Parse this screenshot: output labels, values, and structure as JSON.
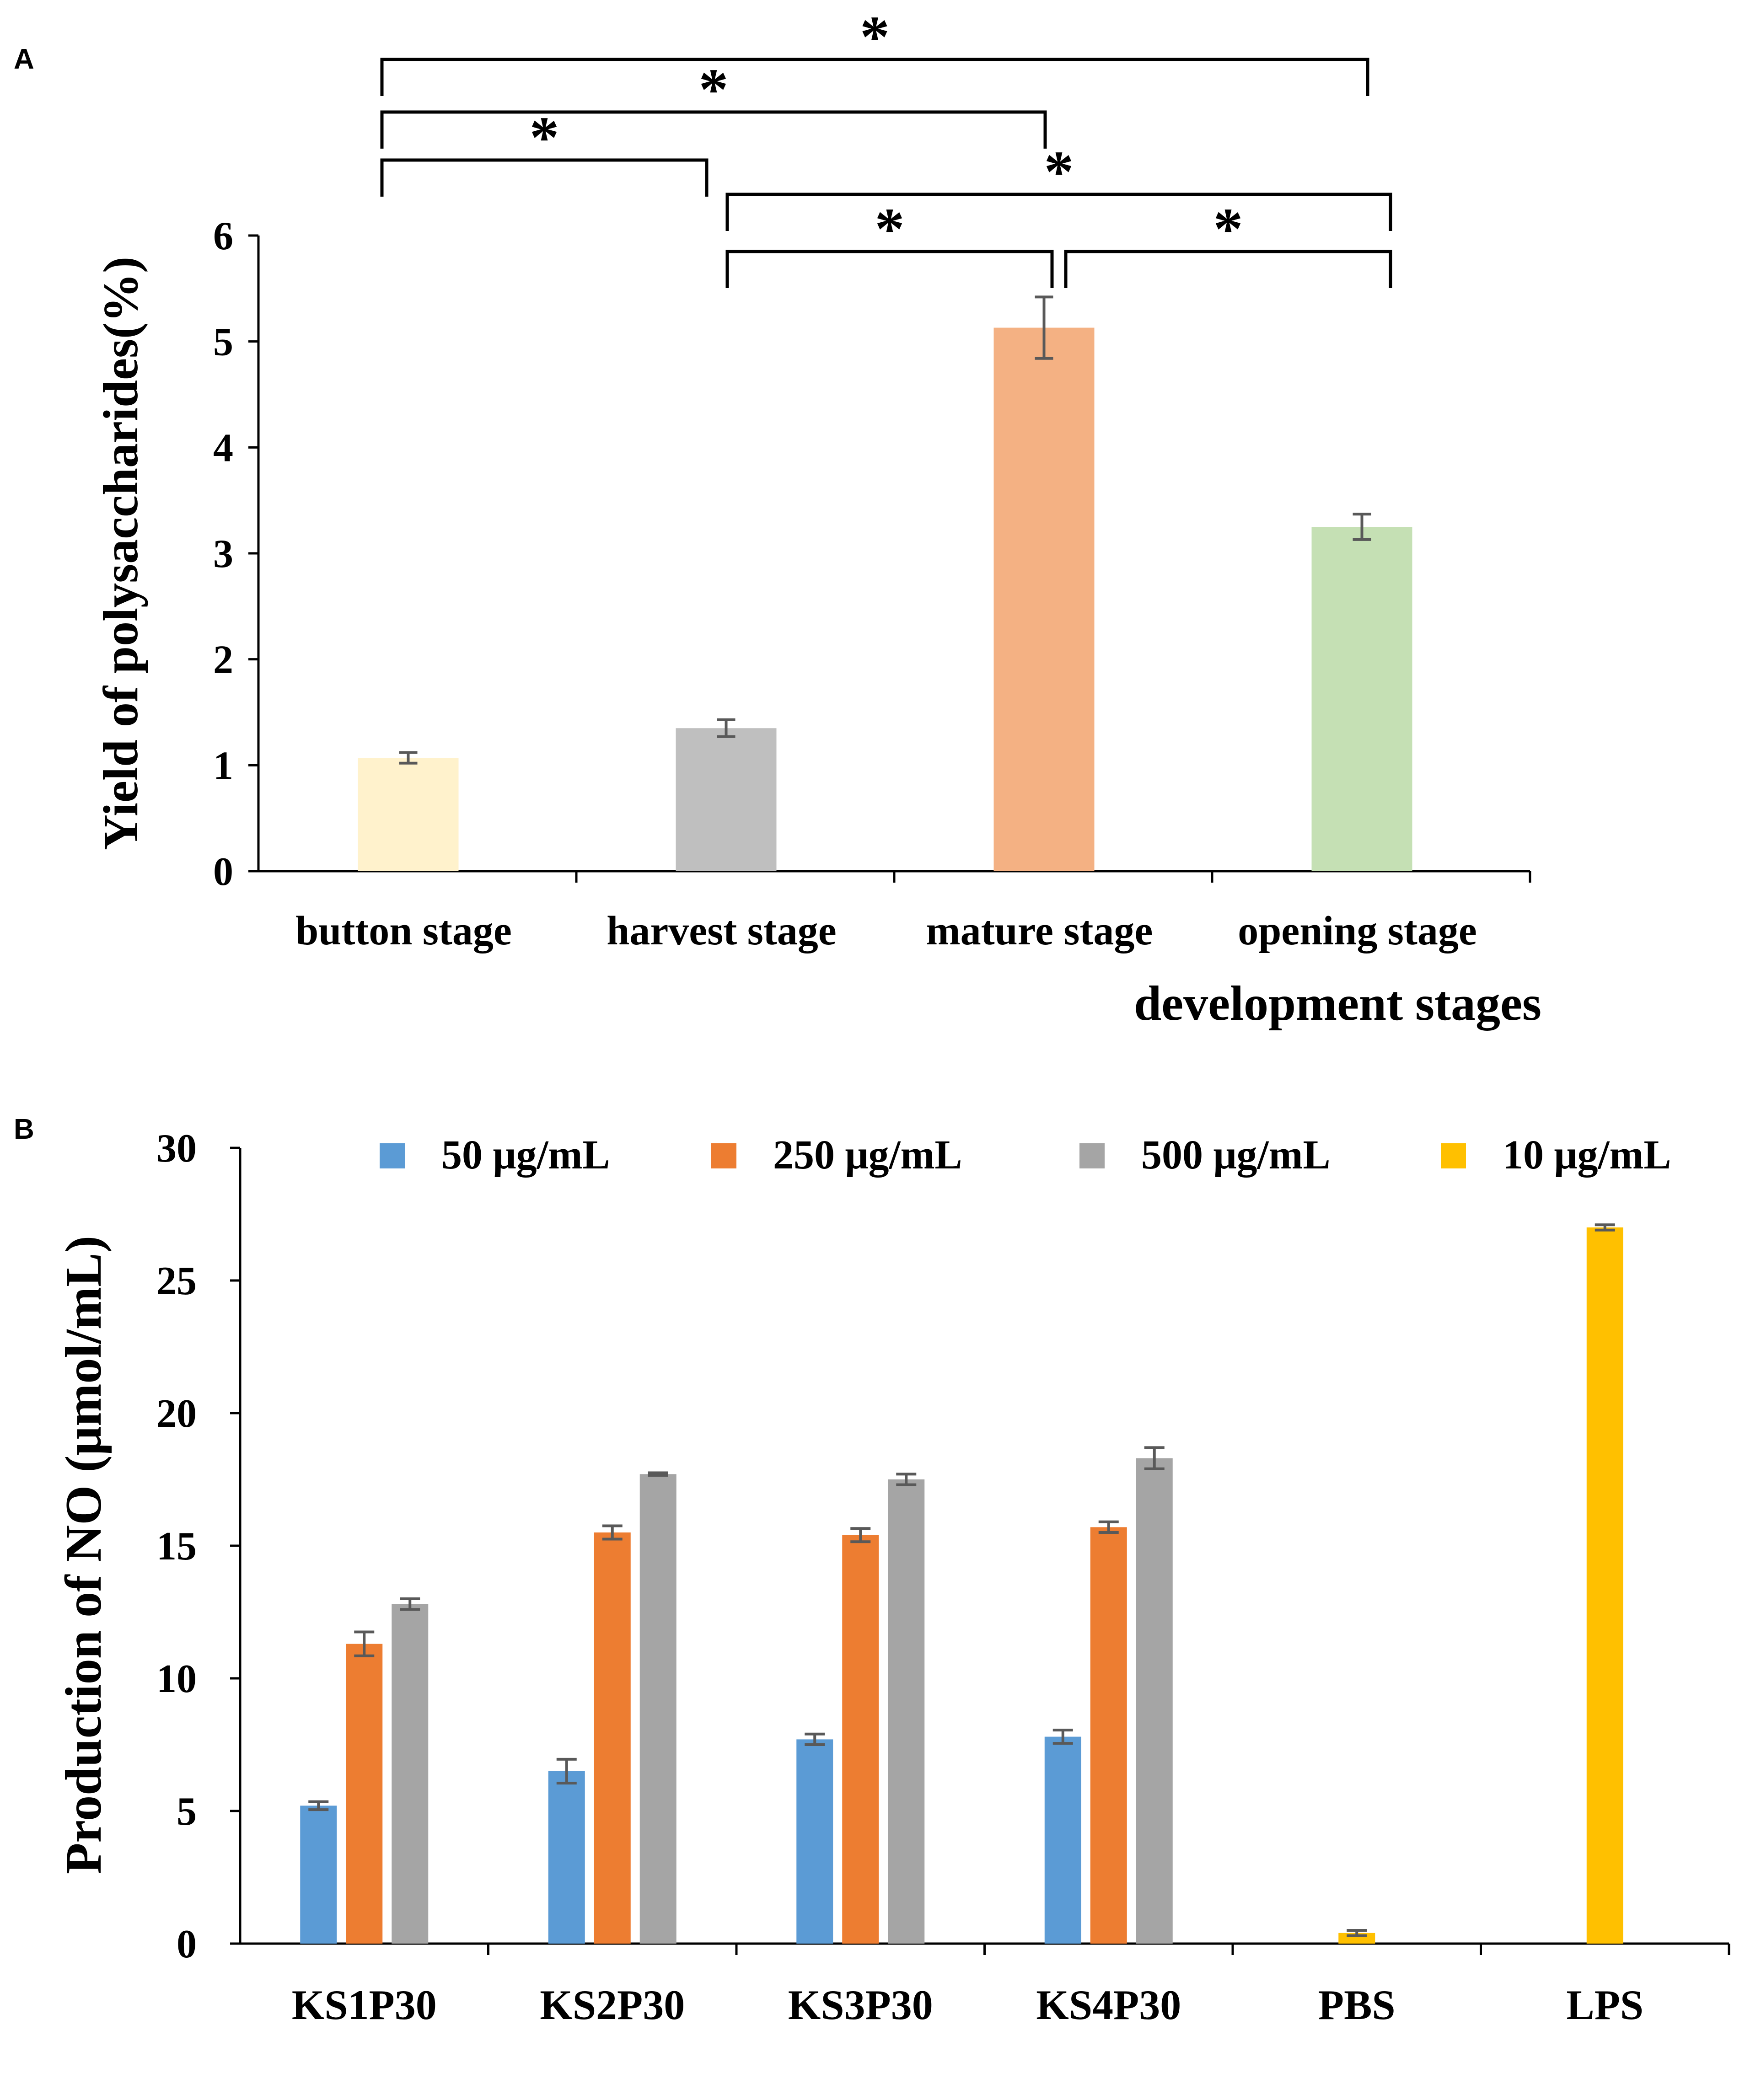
{
  "panel_labels": {
    "a": "A",
    "b": "B"
  },
  "significance_mark": "*",
  "legend_entries": [
    {
      "label": "50 μg/mL",
      "color": "#5b9bd5"
    },
    {
      "label": "250 μg/mL",
      "color": "#ed7d31"
    },
    {
      "label": "500 μg/mL",
      "color": "#a5a5a5"
    },
    {
      "label": "10 μg/mL",
      "color": "#ffc000"
    }
  ],
  "chart_data": [
    {
      "type": "bar",
      "panel": "A",
      "title": "",
      "xlabel": "development  stages",
      "ylabel": "Yield of polysaccharides(%)",
      "ylim": [
        0,
        6
      ],
      "yticks": [
        0,
        1,
        2,
        3,
        4,
        5,
        6
      ],
      "categories": [
        "button  stage",
        "harvest stage",
        "mature stage",
        "opening stage"
      ],
      "values": [
        1.07,
        1.35,
        5.13,
        3.25
      ],
      "errors": [
        0.05,
        0.08,
        0.29,
        0.12
      ],
      "colors": [
        "#fff2cc",
        "#bfbfbf",
        "#f4b183",
        "#c5e0b4"
      ],
      "significance": [
        {
          "from": 0,
          "to": 1,
          "label": "*"
        },
        {
          "from": 0,
          "to": 2,
          "label": "*"
        },
        {
          "from": 0,
          "to": 3,
          "label": "*"
        },
        {
          "from": 1,
          "to": 2,
          "label": "*"
        },
        {
          "from": 1,
          "to": 3,
          "label": "*"
        },
        {
          "from": 2,
          "to": 3,
          "label": "*"
        }
      ]
    },
    {
      "type": "bar",
      "panel": "B",
      "title": "",
      "xlabel": "",
      "ylabel": "Production of NO (μmol/mL)",
      "ylim": [
        0,
        30
      ],
      "yticks": [
        0,
        5,
        10,
        15,
        20,
        25,
        30
      ],
      "categories": [
        "KS1P30",
        "KS2P30",
        "KS3P30",
        "KS4P30",
        "PBS",
        "LPS"
      ],
      "series": [
        {
          "name": "50 μg/mL",
          "values": [
            5.2,
            6.5,
            7.7,
            7.8,
            null,
            null
          ],
          "errors": [
            0.15,
            0.45,
            0.2,
            0.25,
            null,
            null
          ]
        },
        {
          "name": "250 μg/mL",
          "values": [
            11.3,
            15.5,
            15.4,
            15.7,
            null,
            null
          ],
          "errors": [
            0.45,
            0.25,
            0.25,
            0.2,
            null,
            null
          ]
        },
        {
          "name": "500 μg/mL",
          "values": [
            12.8,
            17.7,
            17.5,
            18.3,
            null,
            null
          ],
          "errors": [
            0.2,
            0.05,
            0.2,
            0.4,
            null,
            null
          ]
        },
        {
          "name": "10 μg/mL",
          "values": [
            null,
            null,
            null,
            null,
            0.4,
            27.0
          ],
          "errors": [
            null,
            null,
            null,
            null,
            0.1,
            0.1
          ]
        }
      ]
    }
  ]
}
